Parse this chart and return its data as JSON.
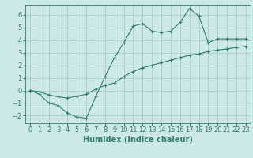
{
  "xlabel": "Humidex (Indice chaleur)",
  "ylabel": "",
  "background_color": "#cce8e8",
  "grid_color": "#aacccc",
  "line_color": "#2e7d6e",
  "xlim": [
    -0.5,
    23.5
  ],
  "ylim": [
    -2.6,
    6.8
  ],
  "yticks": [
    -2,
    -1,
    0,
    1,
    2,
    3,
    4,
    5,
    6
  ],
  "xticks": [
    0,
    1,
    2,
    3,
    4,
    5,
    6,
    7,
    8,
    9,
    10,
    11,
    12,
    13,
    14,
    15,
    16,
    17,
    18,
    19,
    20,
    21,
    22,
    23
  ],
  "curve1_x": [
    0,
    1,
    2,
    3,
    4,
    5,
    6,
    7,
    8,
    9,
    10,
    11,
    12,
    13,
    14,
    15,
    16,
    17,
    18,
    19,
    20,
    21,
    22,
    23
  ],
  "curve1_y": [
    0.0,
    -0.3,
    -1.0,
    -1.2,
    -1.8,
    -2.1,
    -2.2,
    -0.5,
    1.1,
    2.6,
    3.8,
    5.1,
    5.3,
    4.7,
    4.6,
    4.7,
    5.4,
    6.5,
    5.9,
    3.8,
    4.1,
    4.1,
    4.1,
    4.1
  ],
  "curve2_x": [
    0,
    1,
    2,
    3,
    4,
    5,
    6,
    7,
    8,
    9,
    10,
    11,
    12,
    13,
    14,
    15,
    16,
    17,
    18,
    19,
    20,
    21,
    22,
    23
  ],
  "curve2_y": [
    0.0,
    -0.1,
    -0.35,
    -0.5,
    -0.6,
    -0.45,
    -0.3,
    0.1,
    0.4,
    0.6,
    1.1,
    1.5,
    1.8,
    2.0,
    2.2,
    2.4,
    2.6,
    2.8,
    2.9,
    3.1,
    3.2,
    3.3,
    3.4,
    3.5
  ],
  "font_size": 6.0,
  "xlabel_fontsize": 7.0
}
